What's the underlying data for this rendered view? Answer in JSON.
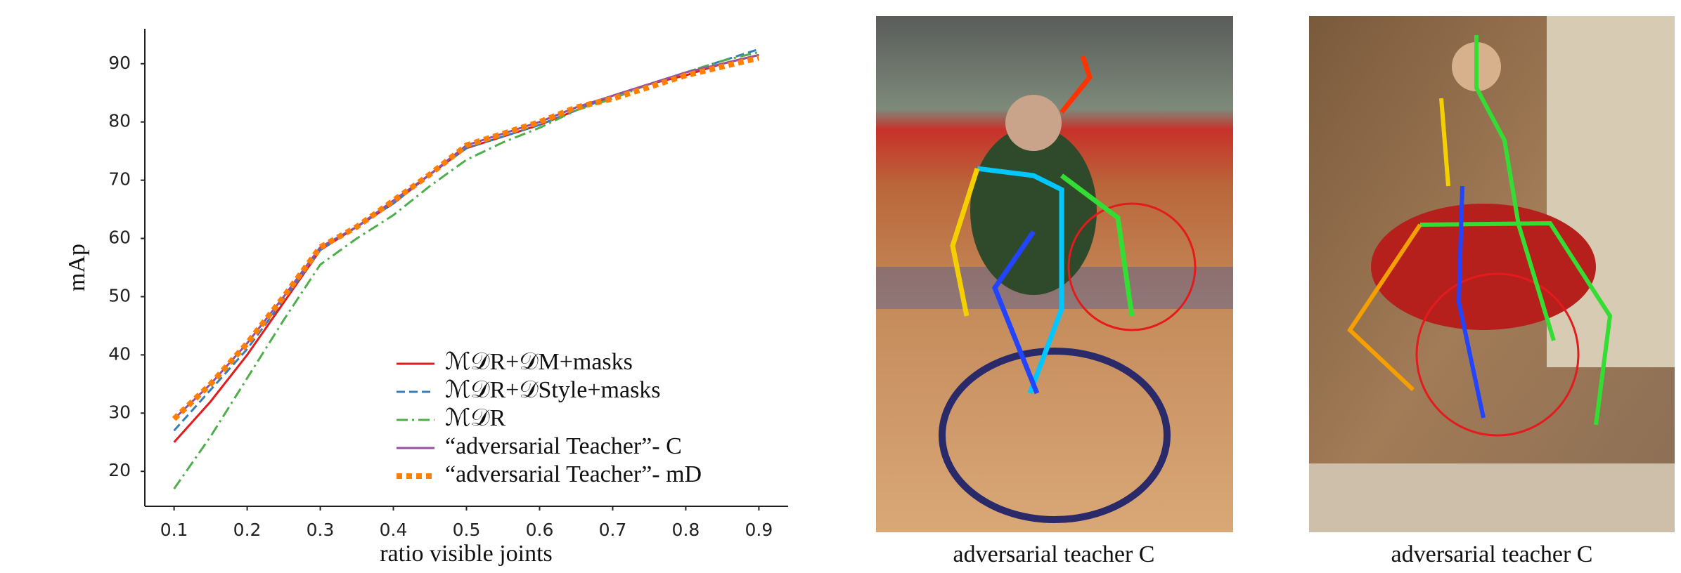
{
  "chart_data": {
    "type": "line",
    "xlabel": "ratio visible joints",
    "ylabel": "mAp",
    "x": [
      0.1,
      0.15,
      0.2,
      0.25,
      0.3,
      0.35,
      0.4,
      0.45,
      0.5,
      0.55,
      0.6,
      0.65,
      0.7,
      0.75,
      0.8,
      0.85,
      0.9
    ],
    "xlim": [
      0.06,
      0.94
    ],
    "xticks": [
      0.1,
      0.2,
      0.3,
      0.4,
      0.5,
      0.6,
      0.7,
      0.8,
      0.9
    ],
    "ylim": [
      14,
      96
    ],
    "yticks": [
      20,
      30,
      40,
      50,
      60,
      70,
      80,
      90
    ],
    "grid": false,
    "legend": "lower right",
    "series": [
      {
        "name": "ℳ𝒟R+𝒟M+masks",
        "color": "#e41a1c",
        "style": "solid",
        "values": [
          25,
          32,
          40,
          49,
          58,
          62,
          66,
          71,
          75.5,
          77.5,
          79.5,
          82,
          84.5,
          86.5,
          88,
          90,
          91.5
        ]
      },
      {
        "name": "ℳ𝒟R+𝒟Style+masks",
        "color": "#377eb8",
        "style": "dashed",
        "values": [
          27,
          34,
          41,
          49.5,
          58,
          62,
          66,
          71,
          75.5,
          77.5,
          79.5,
          82,
          84.5,
          86.5,
          88.5,
          90.5,
          92.5
        ]
      },
      {
        "name": "ℳ𝒟R",
        "color": "#4daf4a",
        "style": "dashdot",
        "values": [
          17,
          26,
          36,
          46,
          55.5,
          60,
          64,
          69,
          73.5,
          76.5,
          79,
          82,
          84,
          86.5,
          88.5,
          90.5,
          92
        ]
      },
      {
        "name": "“adversarial Teacher”- C",
        "color": "#984ea3",
        "style": "solid",
        "values": [
          29,
          35,
          42,
          50,
          58.5,
          62,
          66.5,
          71,
          76,
          78,
          80,
          82.5,
          84.5,
          86.5,
          88.5,
          90,
          91.5
        ]
      },
      {
        "name": "“adversarial Teacher”- mD",
        "color": "#ff7f00",
        "style": "dotted",
        "values": [
          29,
          35,
          42,
          50,
          58.5,
          62,
          66.5,
          71,
          76,
          78,
          80,
          82.5,
          84,
          86,
          88,
          89.5,
          91
        ]
      }
    ]
  },
  "figures": [
    {
      "caption": "adversarial teacher C"
    },
    {
      "caption": "adversarial teacher C"
    }
  ]
}
